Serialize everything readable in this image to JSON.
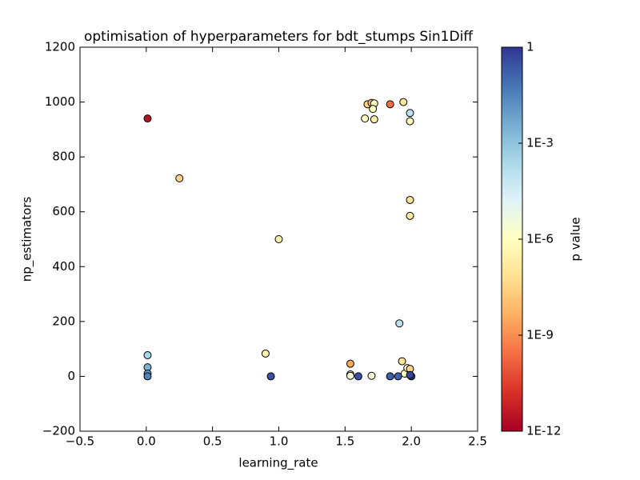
{
  "chart_data": {
    "type": "scatter",
    "title": "optimisation of hyperparameters for bdt_stumps Sin1Diff",
    "x_label": "learning_rate",
    "y_label": "np_estimators",
    "colorbar_label": "p value",
    "x": [
      0.01,
      0.25,
      1.0,
      0.9,
      0.01,
      0.01,
      0.01,
      0.01,
      0.94,
      1.54,
      1.54,
      1.54,
      1.6,
      1.7,
      1.84,
      1.9,
      1.91,
      1.93,
      1.95,
      1.97,
      1.99,
      2.0,
      1.99,
      1.65,
      1.67,
      1.7,
      1.72,
      1.71,
      1.72,
      1.84,
      1.94,
      1.99,
      1.99,
      1.99,
      1.99
    ],
    "values": [
      940,
      722,
      500,
      83,
      77,
      33,
      10,
      0,
      0,
      46,
      7,
      2,
      0,
      2,
      0,
      0,
      193,
      55,
      10,
      30,
      27,
      0,
      5,
      940,
      992,
      997,
      995,
      975,
      937,
      992,
      1000,
      960,
      930,
      643,
      585
    ],
    "color_values": [
      3e-12,
      3e-08,
      3e-07,
      3e-07,
      0.0003,
      0.003,
      0.01,
      0.03,
      0.3,
      3e-09,
      3e-07,
      3e-06,
      0.3,
      3e-06,
      0.15,
      0.15,
      0.0001,
      1e-07,
      1e-06,
      1e-06,
      3e-08,
      0.6,
      0.5,
      1e-06,
      3e-08,
      1e-08,
      1e-06,
      1e-06,
      3e-07,
      3e-10,
      1e-07,
      0.0001,
      1e-06,
      1e-07,
      1.5e-07
    ],
    "xlim": [
      -0.5,
      2.5
    ],
    "xticks": [
      {
        "value": -0.5,
        "label": "−0.5"
      },
      {
        "value": 0,
        "label": "0.0"
      },
      0.5,
      {
        "value": 1,
        "label": "1.0"
      },
      1.5,
      {
        "value": 2,
        "label": "2.0"
      },
      2.5
    ],
    "ylim": [
      -200,
      1200
    ],
    "yticks": [
      {
        "value": -200,
        "label": "−200"
      },
      0,
      200,
      400,
      600,
      800,
      1000,
      1200
    ],
    "clim": [
      1e-12,
      1
    ],
    "cscale": "log",
    "cticks": [
      {
        "value": 1e-12,
        "label": "1E-12"
      },
      {
        "value": 1e-09,
        "label": "1E-9"
      },
      {
        "value": 1e-06,
        "label": "1E-6"
      },
      {
        "value": 0.001,
        "label": "1E-3"
      },
      1
    ],
    "colormap": [
      "#a50026",
      "#d73027",
      "#f46d43",
      "#fdae61",
      "#fee090",
      "#ffffbf",
      "#e0f3f8",
      "#abd9e9",
      "#74add1",
      "#4575b4",
      "#313695"
    ],
    "grid": false
  }
}
